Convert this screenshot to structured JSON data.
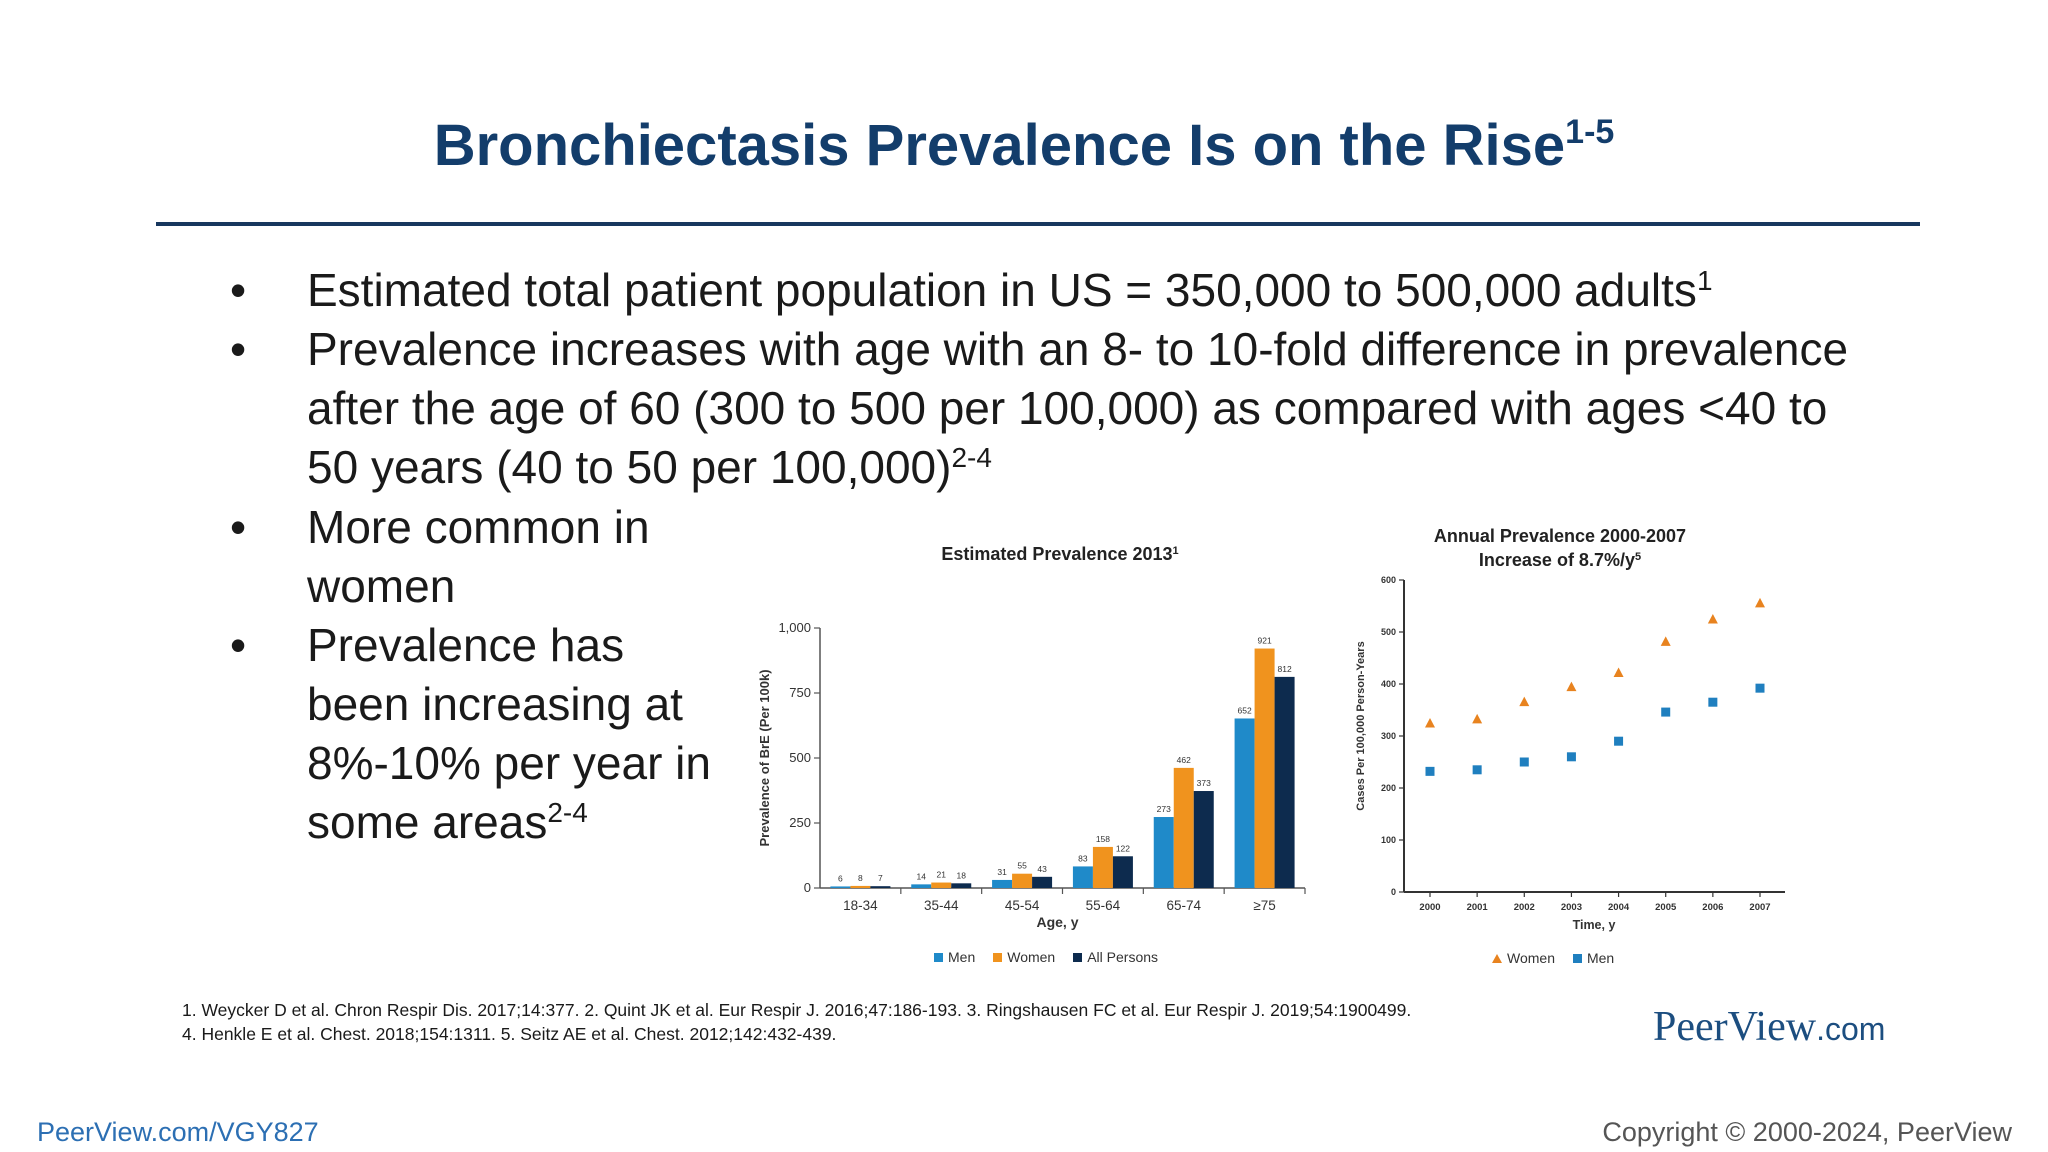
{
  "slide": {
    "title": "Bronchiectasis Prevalence Is on the Rise",
    "title_sup": "1-5",
    "bullets_top": [
      {
        "text": "Estimated total patient population in US = 350,000 to 500,000 adults",
        "sup": "1"
      },
      {
        "text": "Prevalence increases with age with an 8- to 10-fold difference in prevalence after the age of 60 (300 to 500 per 100,000) as compared with ages <40 to 50 years (40 to 50 per 100,000)",
        "sup": "2-4"
      }
    ],
    "bullets_left": [
      {
        "text": "More common in women",
        "sup": ""
      },
      {
        "text": "Prevalence has been increasing at 8%-10% per year in some areas",
        "sup": "2-4"
      }
    ],
    "references": [
      "1. Weycker D et al. Chron Respir Dis. 2017;14:377. 2. Quint JK et al. Eur Respir J. 2016;47:186-193. 3. Ringshausen FC et al. Eur Respir J. 2019;54:1900499.",
      "4. Henkle E et al. Chest. 2018;154:1311. 5. Seitz AE et al. Chest. 2012;142:432-439."
    ],
    "logo": {
      "name": "PeerView",
      "suffix": ".com"
    },
    "footer_link": "PeerView.com/VGY827",
    "copyright": "Copyright © 2000-2024, PeerView"
  },
  "colors": {
    "title": "#133d6b",
    "men": "#1f8ac9",
    "women": "#f0931e",
    "all_persons": "#0d2b4e",
    "women_triangle": "#e8831f",
    "men_square": "#1f7fbf"
  },
  "chart_data": [
    {
      "type": "bar",
      "title": "Estimated Prevalence 2013",
      "title_sup": "1",
      "xlabel": "Age, y",
      "ylabel": "Prevalence of BrE (Per 100k)",
      "ylim": [
        0,
        1000
      ],
      "yticks": [
        0,
        250,
        500,
        750,
        1000
      ],
      "ytick_labels": [
        "0",
        "250",
        "500",
        "750",
        "1,000"
      ],
      "categories": [
        "18-34",
        "35-44",
        "45-54",
        "55-64",
        "65-74",
        "≥75"
      ],
      "series": [
        {
          "name": "Men",
          "values": [
            6,
            14,
            31,
            83,
            273,
            652
          ]
        },
        {
          "name": "Women",
          "values": [
            8,
            21,
            55,
            158,
            462,
            921
          ]
        },
        {
          "name": "All Persons",
          "values": [
            7,
            18,
            43,
            122,
            373,
            812
          ]
        }
      ],
      "legend": "bottom",
      "grid": false
    },
    {
      "type": "scatter",
      "title": "Annual Prevalence 2000-2007",
      "subtitle": "Increase of 8.7%/y",
      "subtitle_sup": "5",
      "xlabel": "Time, y",
      "ylabel": "Cases Per 100,000 Person-Years",
      "ylim": [
        0,
        600
      ],
      "yticks": [
        0,
        100,
        200,
        300,
        400,
        500,
        600
      ],
      "x": [
        "2000",
        "2001",
        "2002",
        "2003",
        "2004",
        "2005",
        "2006",
        "2007"
      ],
      "series": [
        {
          "name": "Women",
          "marker": "triangle",
          "values": [
            325,
            333,
            366,
            395,
            422,
            482,
            525,
            556
          ]
        },
        {
          "name": "Men",
          "marker": "square",
          "values": [
            232,
            235,
            250,
            260,
            290,
            346,
            365,
            392
          ]
        }
      ],
      "legend": "bottom",
      "grid": false
    }
  ]
}
